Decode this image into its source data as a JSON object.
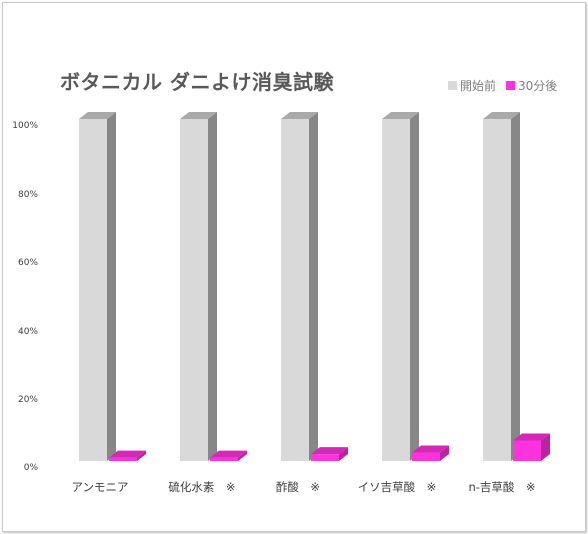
{
  "chart_data": {
    "type": "bar",
    "title": "ボタニカル ダニよけ消臭試験",
    "categories": [
      "アンモニア",
      "硫化水素　※",
      "酢酸　※",
      "イソ吉草酸　※",
      "n-吉草酸　※"
    ],
    "series": [
      {
        "name": "開始前",
        "values": [
          100,
          100,
          100,
          100,
          100
        ],
        "color": "#d9d9d9"
      },
      {
        "name": "30分後",
        "values": [
          1,
          1,
          2,
          2.5,
          6
        ],
        "color": "#ff33dd"
      }
    ],
    "ylim": [
      0,
      100
    ],
    "yticks": [
      "0%",
      "20%",
      "40%",
      "60%",
      "80%",
      "100%"
    ],
    "xlabel": "",
    "ylabel": "",
    "grid": false,
    "legend_position": "top-right"
  }
}
